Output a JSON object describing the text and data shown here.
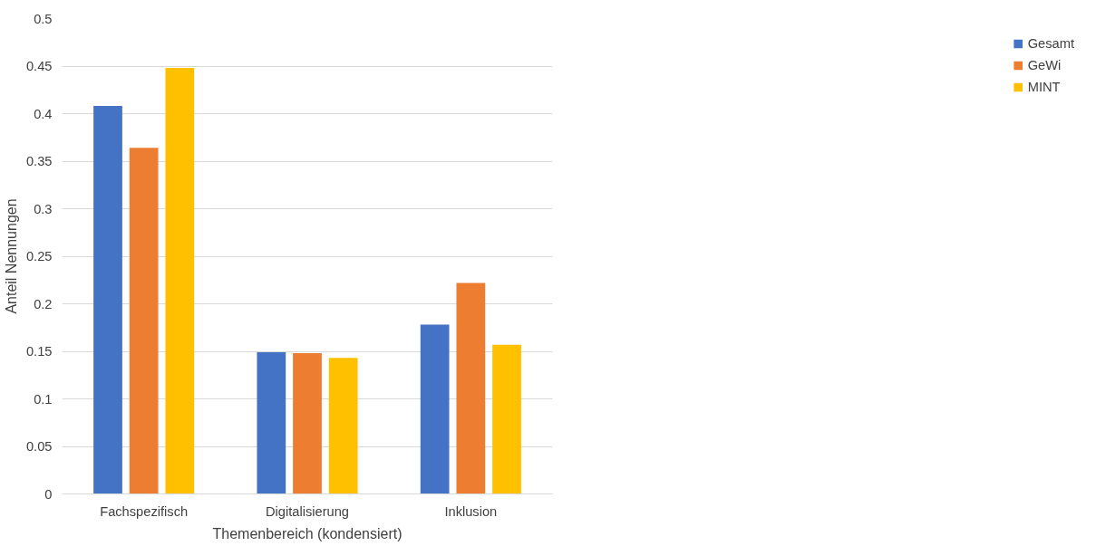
{
  "chart_data": {
    "type": "bar",
    "xlabel": "Themenbereich (kondensiert)",
    "ylabel": "Anteil Nennungen",
    "categories": [
      "Fachspezifisch",
      "Digitalisierung",
      "Inklusion"
    ],
    "series": [
      {
        "name": "Gesamt",
        "color": "#4472c4",
        "values": [
          0.408,
          0.149,
          0.178
        ]
      },
      {
        "name": "GeWi",
        "color": "#ed7d31",
        "values": [
          0.364,
          0.148,
          0.222
        ]
      },
      {
        "name": "MINT",
        "color": "#ffc000",
        "values": [
          0.448,
          0.143,
          0.157
        ]
      }
    ],
    "ylim": [
      0,
      0.5
    ],
    "yticks": [
      0,
      0.05,
      0.1,
      0.15,
      0.2,
      0.25,
      0.3,
      0.35,
      0.4,
      0.45,
      0.5
    ],
    "grid": "y",
    "legend": "right"
  }
}
